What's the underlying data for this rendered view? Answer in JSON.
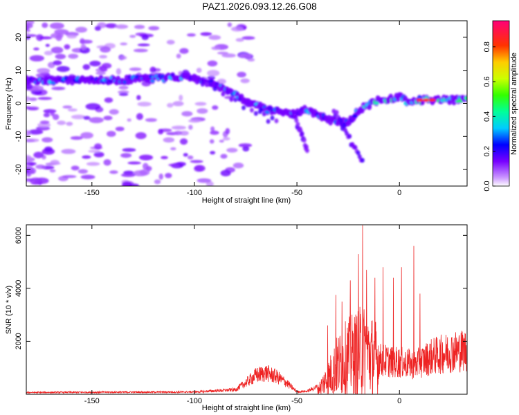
{
  "title": "PAZ1.2026.093.12.26.G08",
  "chart_data": [
    {
      "type": "heatmap",
      "name": "spectrogram",
      "xlabel": "Height of straight line (km)",
      "ylabel": "Frequency (Hz)",
      "xlim": [
        -182,
        33
      ],
      "ylim": [
        -25,
        25
      ],
      "xticks": [
        -150,
        -100,
        -50,
        0
      ],
      "yticks": [
        -20,
        -10,
        0,
        10,
        20
      ],
      "colorbar": {
        "label": "Normalized spectral amplitude",
        "range": [
          0,
          0.95
        ],
        "ticks": [
          0.0,
          0.2,
          0.4,
          0.6,
          0.8
        ]
      },
      "ridge": {
        "x": [
          -180,
          -160,
          -140,
          -120,
          -105,
          -95,
          -85,
          -75,
          -65,
          -55,
          -45,
          -35,
          -25,
          -20,
          -10,
          0,
          5,
          10,
          20,
          33
        ],
        "y": [
          7,
          7,
          7,
          7.5,
          8,
          7,
          4,
          1,
          -2,
          -3,
          -2,
          -5,
          -6,
          -2,
          1,
          2,
          0,
          1,
          1,
          1
        ]
      }
    },
    {
      "type": "line",
      "name": "snr",
      "xlabel": "Height of straight line (km)",
      "ylabel": "SNR (10 * v/v)",
      "xlim": [
        -182,
        33
      ],
      "ylim": [
        0,
        6400
      ],
      "xticks": [
        -150,
        -100,
        -50,
        0
      ],
      "yticks": [
        2000,
        4000,
        6000
      ],
      "color": "#ee2222",
      "envelope": {
        "x": [
          -182,
          -150,
          -100,
          -80,
          -75,
          -70,
          -65,
          -60,
          -55,
          -50,
          -45,
          -40,
          -35,
          -30,
          -25,
          -20,
          -18,
          -15,
          -10,
          -5,
          0,
          5,
          7,
          10,
          15,
          20,
          25,
          33
        ],
        "y": [
          70,
          80,
          90,
          180,
          450,
          750,
          850,
          700,
          450,
          100,
          120,
          300,
          1200,
          2200,
          2800,
          3100,
          3300,
          3000,
          2600,
          2500,
          2400,
          2300,
          2200,
          2400,
          2800,
          3000,
          3200,
          3350
        ]
      },
      "spikes": [
        {
          "x": -35,
          "y": 2600
        },
        {
          "x": -31,
          "y": 3750
        },
        {
          "x": -28,
          "y": 3500
        },
        {
          "x": -24,
          "y": 4300
        },
        {
          "x": -20,
          "y": 5300
        },
        {
          "x": -18,
          "y": 6380
        },
        {
          "x": -16,
          "y": 4700
        },
        {
          "x": -12,
          "y": 4400
        },
        {
          "x": -8,
          "y": 4800
        },
        {
          "x": -3,
          "y": 4400
        },
        {
          "x": 1,
          "y": 4800
        },
        {
          "x": 7,
          "y": 5600
        },
        {
          "x": 10,
          "y": 3800
        }
      ]
    }
  ]
}
